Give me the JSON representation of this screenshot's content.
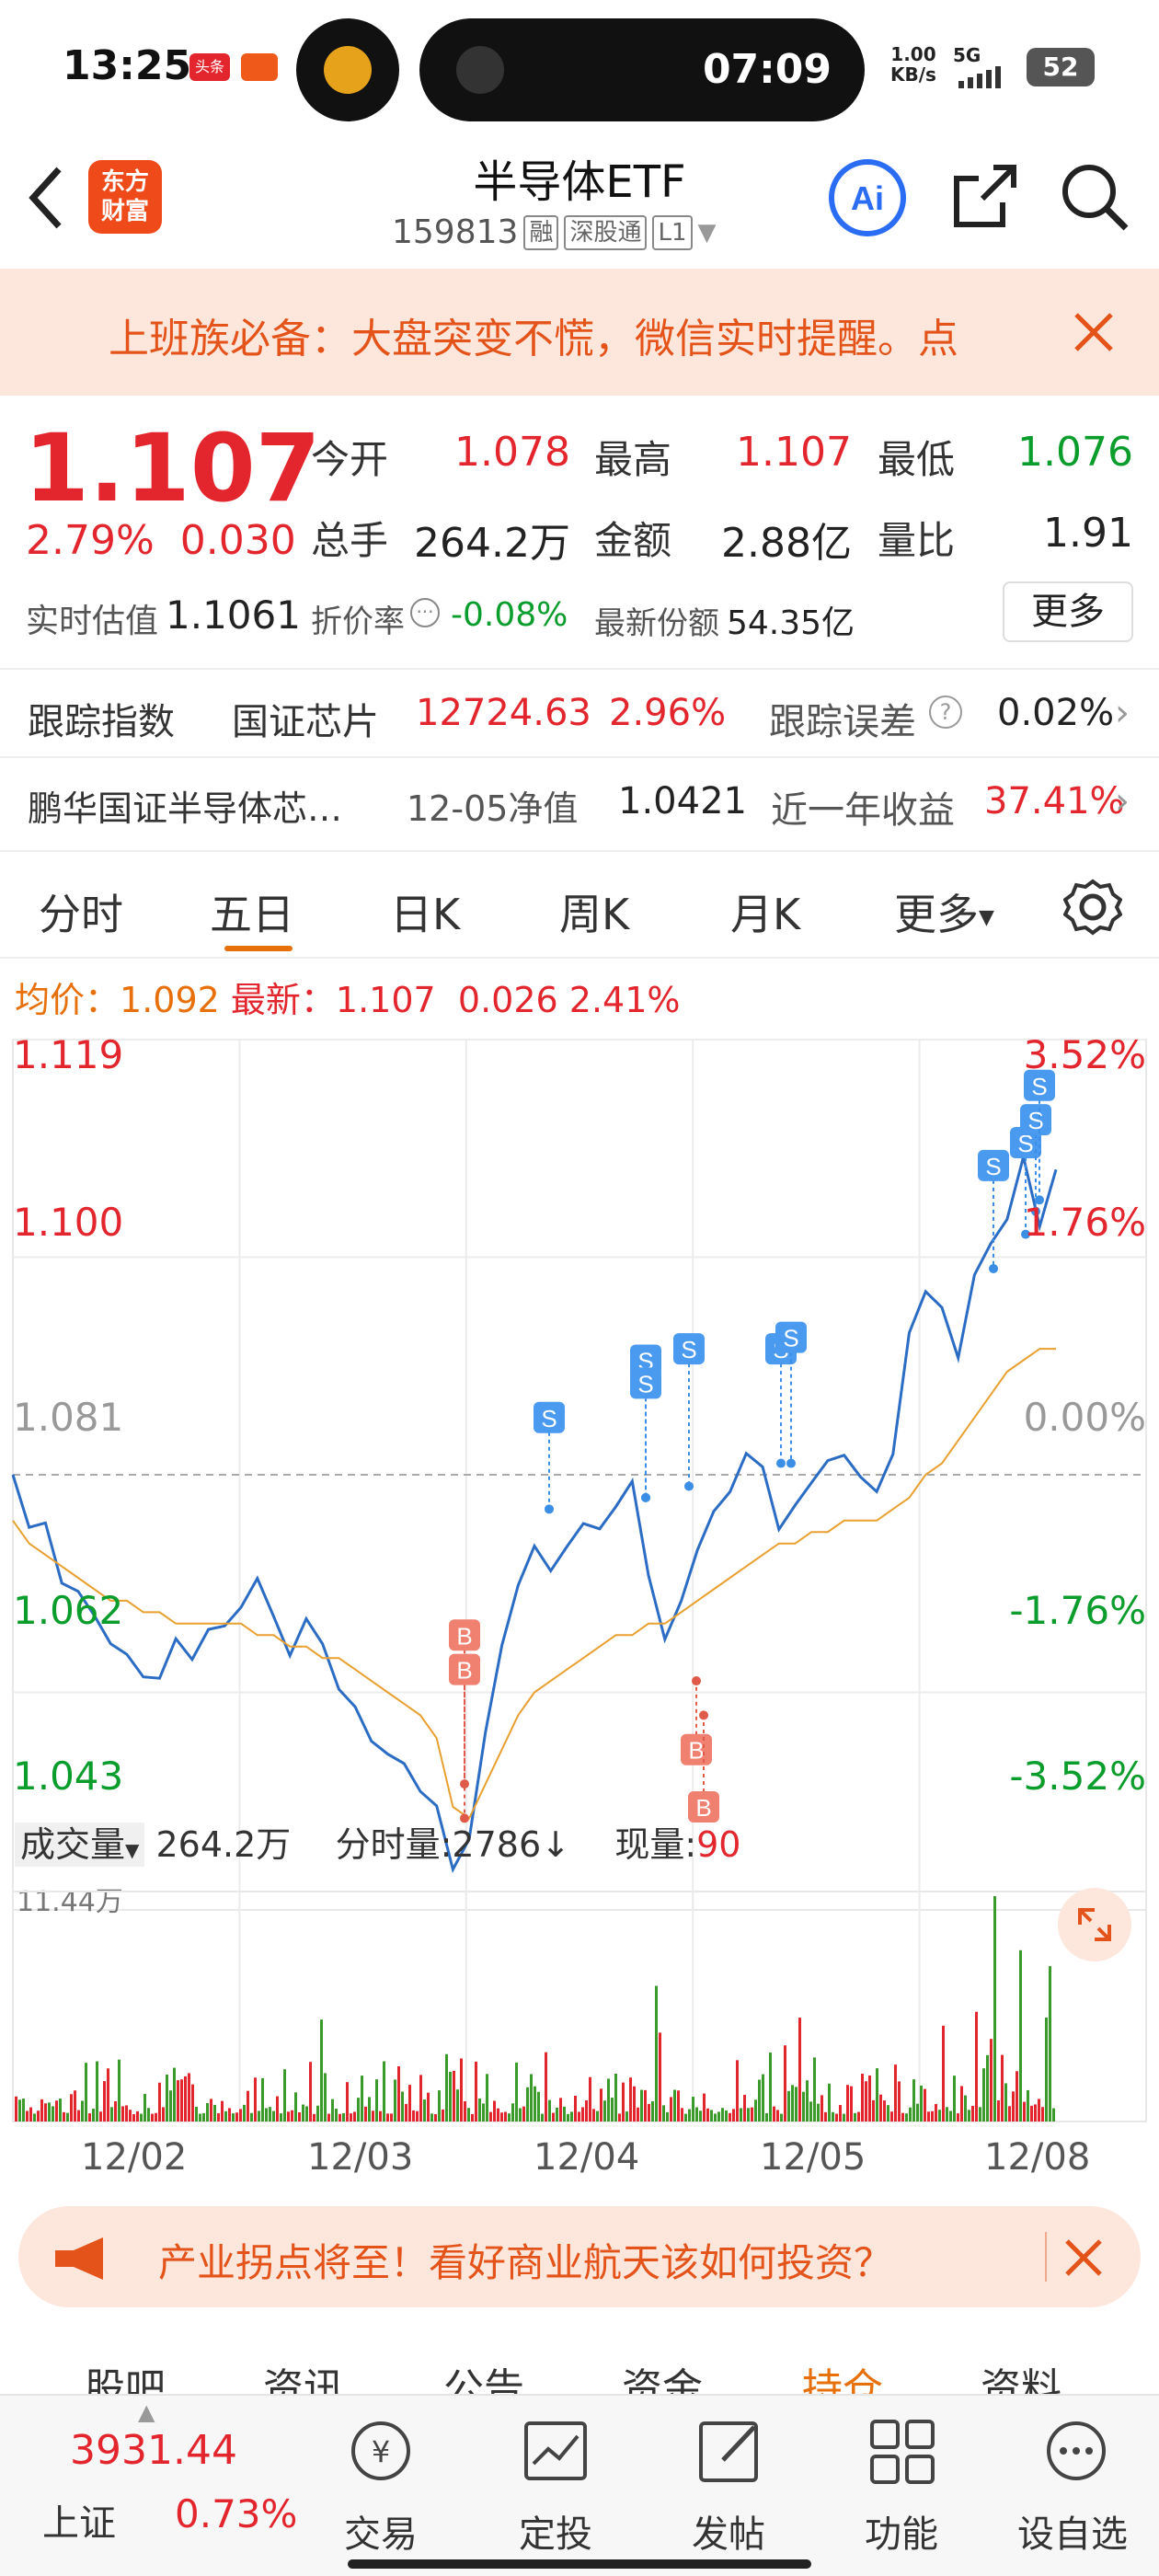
{
  "status_bar": {
    "time": "13:25",
    "badge1": "头条",
    "island_timer": "07:09",
    "net_speed": "1.00",
    "net_unit": "KB/s",
    "network": "5G",
    "battery": "52"
  },
  "header": {
    "title": "半导体ETF",
    "code": "159813",
    "tags": [
      "融",
      "深股通",
      "L1"
    ],
    "logo_line1": "东方",
    "logo_line2": "财富"
  },
  "promo_banner": {
    "text": "上班族必备：大盘突变不慌，微信实时提醒。点"
  },
  "quote": {
    "price": "1.107",
    "change_pct": "2.79%",
    "change": "0.030",
    "open_label": "今开",
    "open": "1.078",
    "high_label": "最高",
    "high": "1.107",
    "low_label": "最低",
    "low": "1.076",
    "volume_label": "总手",
    "volume": "264.2万",
    "amount_label": "金额",
    "amount": "2.88亿",
    "ratio_label": "量比",
    "ratio": "1.91",
    "iopv_label": "实时估值",
    "iopv": "1.1061",
    "discount_label": "折价率",
    "discount": "-0.08%",
    "shares_label": "最新份额",
    "shares": "54.35亿",
    "more": "更多"
  },
  "tracking": {
    "label": "跟踪指数",
    "index_name": "国证芯片",
    "index_value": "12724.63",
    "index_pct": "2.96%",
    "error_label": "跟踪误差",
    "error": "0.02%"
  },
  "fund": {
    "name": "鹏华国证半导体芯…",
    "nav_label": "12-05净值",
    "nav": "1.0421",
    "year_label": "近一年收益",
    "year_return": "37.41%"
  },
  "tabs": [
    "分时",
    "五日",
    "日K",
    "周K",
    "月K",
    "更多"
  ],
  "chart_header": {
    "avg_label": "均价：",
    "avg": "1.092",
    "latest_label": "最新：",
    "latest": "1.107",
    "chg": "0.026",
    "pct": "2.41%"
  },
  "volume_header": {
    "label": "成交量",
    "total": "264.2万",
    "tick_label": "分时量:2786",
    "arrow": "↓",
    "now_label": "现量:",
    "now": "90",
    "max": "11.44万"
  },
  "chart_data": {
    "type": "line",
    "x_ticks": [
      "12/02",
      "12/03",
      "12/04",
      "12/05",
      "12/08"
    ],
    "y_left": [
      "1.119",
      "1.100",
      "1.081",
      "1.062",
      "1.043"
    ],
    "y_right": [
      "3.52%",
      "1.76%",
      "0.00%",
      "-1.76%",
      "-3.52%"
    ],
    "ylim": [
      1.043,
      1.119
    ],
    "baseline": 1.081,
    "series": [
      {
        "values": [
          1.081,
          1.077,
          1.076,
          1.072,
          1.071,
          1.068,
          1.067,
          1.065,
          1.063,
          1.064,
          1.066,
          1.065,
          1.068,
          1.067,
          1.07,
          1.072,
          1.068,
          1.066,
          1.068,
          1.066,
          1.063,
          1.06,
          1.058,
          1.057,
          1.055,
          1.054,
          1.052,
          1.046,
          1.05,
          1.058,
          1.066,
          1.072,
          1.074,
          1.073,
          1.075,
          1.076,
          1.077,
          1.078,
          1.08,
          1.073,
          1.066,
          1.07,
          1.075,
          1.077,
          1.08,
          1.083,
          1.081,
          1.077,
          1.078,
          1.08,
          1.083,
          1.082,
          1.081,
          1.08,
          1.082,
          1.094,
          1.097,
          1.095,
          1.092,
          1.098,
          1.101,
          1.104,
          1.108,
          1.103,
          1.108
        ]
      },
      {
        "values": [
          1.077,
          1.075,
          1.074,
          1.073,
          1.072,
          1.071,
          1.07,
          1.07,
          1.069,
          1.069,
          1.068,
          1.068,
          1.068,
          1.068,
          1.068,
          1.067,
          1.067,
          1.066,
          1.066,
          1.065,
          1.065,
          1.064,
          1.063,
          1.062,
          1.061,
          1.06,
          1.058,
          1.052,
          1.051,
          1.054,
          1.057,
          1.06,
          1.062,
          1.063,
          1.064,
          1.065,
          1.066,
          1.067,
          1.067,
          1.068,
          1.068,
          1.069,
          1.07,
          1.071,
          1.072,
          1.073,
          1.074,
          1.075,
          1.075,
          1.076,
          1.076,
          1.077,
          1.077,
          1.077,
          1.078,
          1.079,
          1.081,
          1.082,
          1.084,
          1.086,
          1.088,
          1.09,
          1.091,
          1.092,
          1.092
        ]
      }
    ],
    "markers_b": [
      "B",
      "B",
      "B",
      "B"
    ],
    "markers_s": [
      "S",
      "S",
      "S",
      "S",
      "S",
      "S",
      "S",
      "S",
      "S",
      "S"
    ]
  },
  "promo2": {
    "text": "产业拐点将至！看好商业航天该如何投资？"
  },
  "subtabs": [
    "股吧",
    "资讯",
    "公告",
    "资金",
    "持仓",
    "资料"
  ],
  "bottom": {
    "index_value": "3931.44",
    "index_name": "上证",
    "index_pct": "0.73%",
    "items": [
      "交易",
      "定投",
      "发帖",
      "功能",
      "设自选"
    ]
  }
}
